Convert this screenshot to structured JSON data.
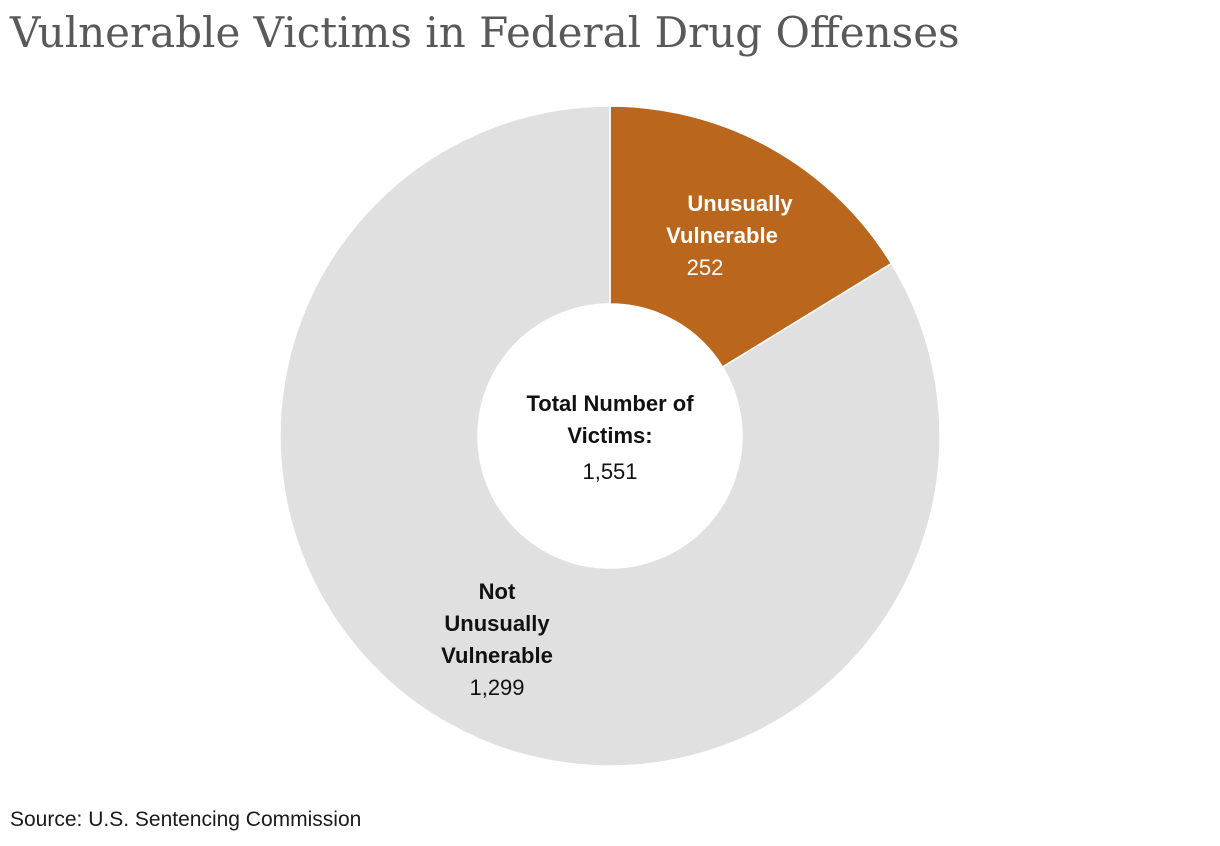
{
  "title": "Vulnerable Victims in Federal Drug Offenses",
  "source": "Source: U.S. Sentencing Commission",
  "center": {
    "label_line1": "Total Number of",
    "label_line2": "Victims:",
    "value": "1,551"
  },
  "colors": {
    "unusually_vulnerable": "#BA661C",
    "not_unusually_vulnerable": "#E0E0E0",
    "title": "#595959"
  },
  "chart_data": {
    "type": "pie",
    "variant": "donut",
    "total": 1551,
    "slices": [
      {
        "name": "Unusually Vulnerable",
        "label_lines": [
          "Unusually",
          "Vulnerable"
        ],
        "value": 252,
        "value_label": "252",
        "color": "#BA661C"
      },
      {
        "name": "Not Unusually Vulnerable",
        "label_lines": [
          "Not",
          "Unusually",
          "Vulnerable"
        ],
        "value": 1299,
        "value_label": "1,299",
        "color": "#E0E0E0"
      }
    ]
  }
}
